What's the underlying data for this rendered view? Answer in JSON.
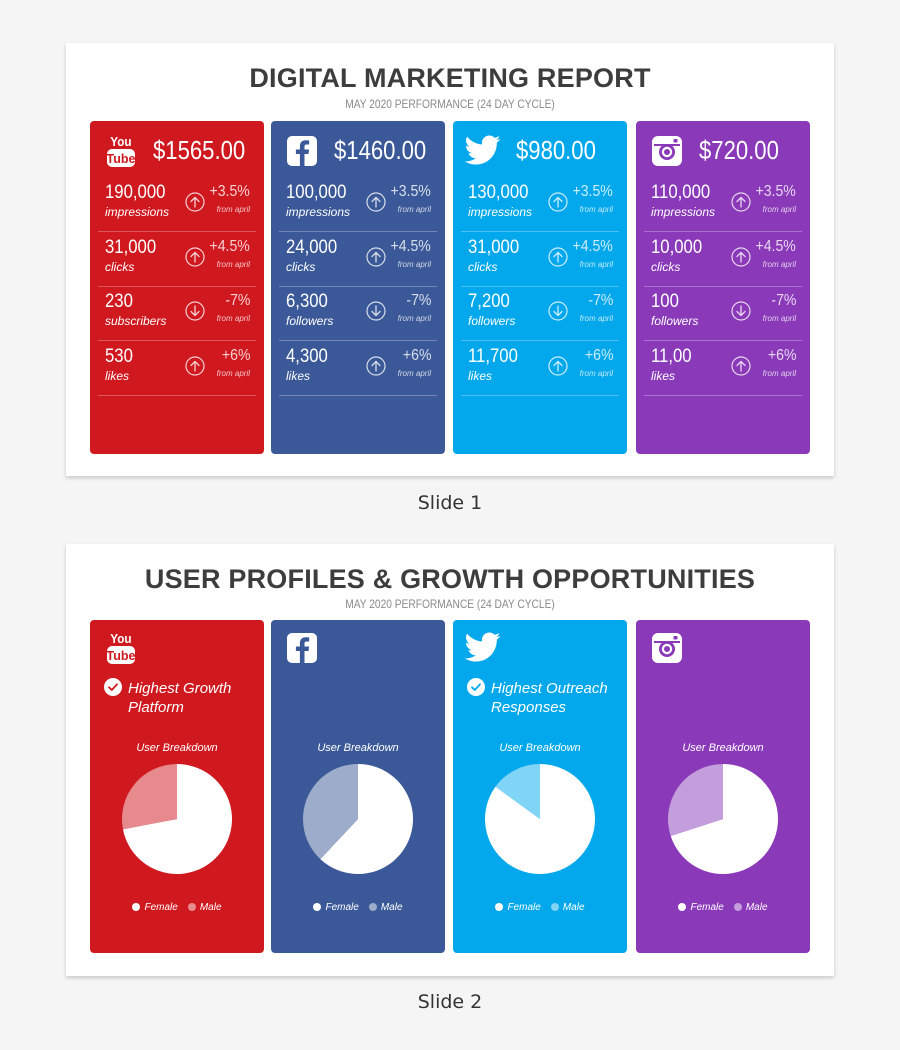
{
  "slide1": {
    "title": "DIGITAL MARKETING REPORT",
    "subtitle": "MAY 2020 PERFORMANCE (24 DAY CYCLE)",
    "caption": "Slide 1",
    "cards": [
      {
        "platform": "youtube",
        "logo_text_top": "You",
        "logo_text_bottom": "Tube",
        "color": "#d0181f",
        "amount": "$1565.00",
        "rows": [
          {
            "value": "190,000",
            "label": "impressions",
            "change": "+3.5%",
            "note": "from april",
            "direction": "up"
          },
          {
            "value": "31,000",
            "label": "clicks",
            "change": "+4.5%",
            "note": "from april",
            "direction": "up"
          },
          {
            "value": "230",
            "label": "subscribers",
            "change": "-7%",
            "note": "from april",
            "direction": "down"
          },
          {
            "value": "530",
            "label": "likes",
            "change": "+6%",
            "note": "from april",
            "direction": "up"
          }
        ]
      },
      {
        "platform": "facebook",
        "color": "#3b5998",
        "amount": "$1460.00",
        "rows": [
          {
            "value": "100,000",
            "label": "impressions",
            "change": "+3.5%",
            "note": "from april",
            "direction": "up"
          },
          {
            "value": "24,000",
            "label": "clicks",
            "change": "+4.5%",
            "note": "from april",
            "direction": "up"
          },
          {
            "value": "6,300",
            "label": "followers",
            "change": "-7%",
            "note": "from april",
            "direction": "down"
          },
          {
            "value": "4,300",
            "label": "likes",
            "change": "+6%",
            "note": "from april",
            "direction": "up"
          }
        ]
      },
      {
        "platform": "twitter",
        "color": "#03a8ec",
        "amount": "$980.00",
        "rows": [
          {
            "value": "130,000",
            "label": "impressions",
            "change": "+3.5%",
            "note": "from april",
            "direction": "up"
          },
          {
            "value": "31,000",
            "label": "clicks",
            "change": "+4.5%",
            "note": "from april",
            "direction": "up"
          },
          {
            "value": "7,200",
            "label": "followers",
            "change": "-7%",
            "note": "from april",
            "direction": "down"
          },
          {
            "value": "11,700",
            "label": "likes",
            "change": "+6%",
            "note": "from april",
            "direction": "up"
          }
        ]
      },
      {
        "platform": "instagram",
        "color": "#8a3ab9",
        "amount": "$720.00",
        "rows": [
          {
            "value": "110,000",
            "label": "impressions",
            "change": "+3.5%",
            "note": "from april",
            "direction": "up"
          },
          {
            "value": "10,000",
            "label": "clicks",
            "change": "+4.5%",
            "note": "from april",
            "direction": "up"
          },
          {
            "value": "100",
            "label": "followers",
            "change": "-7%",
            "note": "from april",
            "direction": "down"
          },
          {
            "value": "11,00",
            "label": "likes",
            "change": "+6%",
            "note": "from april",
            "direction": "up"
          }
        ]
      }
    ]
  },
  "slide2": {
    "title": "USER PROFILES & GROWTH OPPORTUNITIES",
    "subtitle": "MAY 2020 PERFORMANCE (24 DAY CYCLE)",
    "caption": "Slide 2",
    "cards": [
      {
        "platform": "youtube",
        "logo_text_top": "You",
        "logo_text_bottom": "Tube",
        "color": "#d0181f",
        "badge": "Highest Growth Platform",
        "breakdown_label": "User Breakdown",
        "legend": [
          "Female",
          "Male"
        ],
        "male_color": "#e68a8e"
      },
      {
        "platform": "facebook",
        "color": "#3b5998",
        "badge": "",
        "breakdown_label": "User Breakdown",
        "legend": [
          "Female",
          "Male"
        ],
        "male_color": "#9dacca"
      },
      {
        "platform": "twitter",
        "color": "#03a8ec",
        "badge": "Highest Outreach Responses",
        "breakdown_label": "User Breakdown",
        "legend": [
          "Female",
          "Male"
        ],
        "male_color": "#80d4f6"
      },
      {
        "platform": "instagram",
        "color": "#8a3ab9",
        "badge": "",
        "breakdown_label": "User Breakdown",
        "legend": [
          "Female",
          "Male"
        ],
        "male_color": "#c49ddc"
      }
    ]
  },
  "chart_data": [
    {
      "type": "pie",
      "title": "User Breakdown",
      "categories": [
        "Female",
        "Male"
      ],
      "values": [
        72,
        28
      ],
      "platform": "youtube"
    },
    {
      "type": "pie",
      "title": "User Breakdown",
      "categories": [
        "Female",
        "Male"
      ],
      "values": [
        62,
        38
      ],
      "platform": "facebook"
    },
    {
      "type": "pie",
      "title": "User Breakdown",
      "categories": [
        "Female",
        "Male"
      ],
      "values": [
        85,
        15
      ],
      "platform": "twitter"
    },
    {
      "type": "pie",
      "title": "User Breakdown",
      "categories": [
        "Female",
        "Male"
      ],
      "values": [
        70,
        30
      ],
      "platform": "instagram"
    }
  ]
}
